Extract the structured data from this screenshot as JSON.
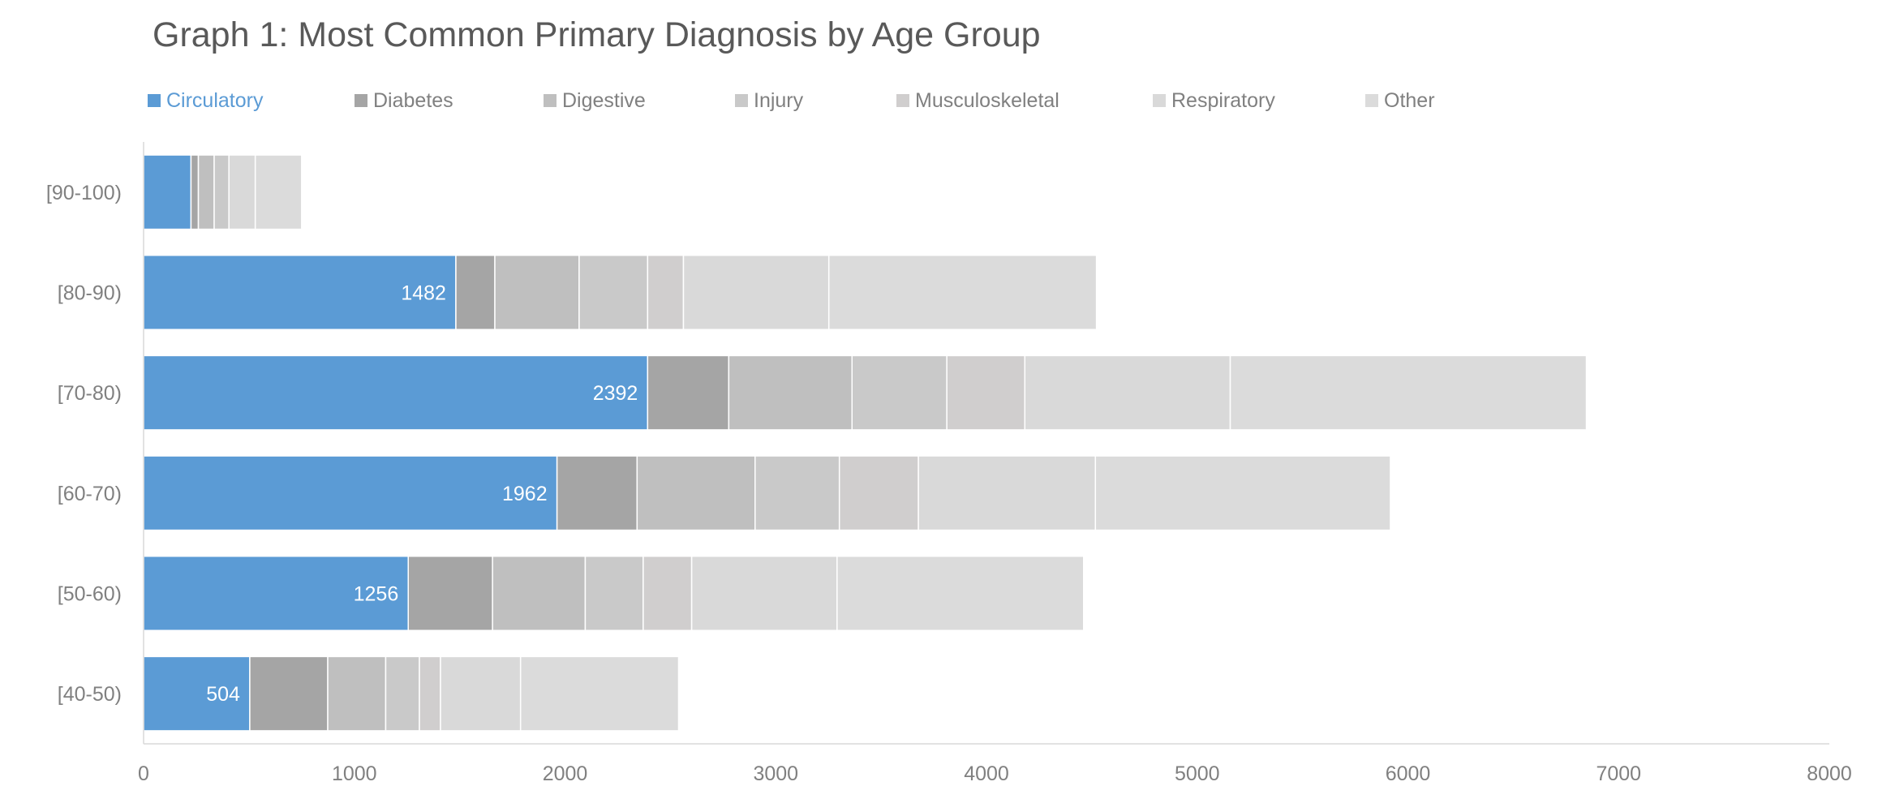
{
  "chart_data": {
    "type": "bar",
    "orientation": "horizontal",
    "stacked": true,
    "title": "Graph 1: Most Common Primary Diagnosis by Age Group",
    "legend_position": "top",
    "categories": [
      "[40-50)",
      "[50-60)",
      "[60-70)",
      "[70-80)",
      "[80-90)",
      "[90-100)"
    ],
    "series": [
      {
        "name": "Circulatory",
        "color": "#5b9bd5",
        "values": [
          504,
          1256,
          1962,
          2392,
          1482,
          225
        ]
      },
      {
        "name": "Diabetes",
        "color": "#a5a5a5",
        "values": [
          370,
          400,
          380,
          385,
          185,
          35
        ]
      },
      {
        "name": "Digestive",
        "color": "#bfbfbf",
        "values": [
          275,
          440,
          560,
          585,
          400,
          75
        ]
      },
      {
        "name": "Injury",
        "color": "#c9c9c9",
        "values": [
          160,
          275,
          400,
          450,
          325,
          70
        ]
      },
      {
        "name": "Musculoskeletal",
        "color": "#d0cece",
        "values": [
          100,
          230,
          375,
          370,
          170,
          0
        ]
      },
      {
        "name": "Respiratory",
        "color": "#d9d9d9",
        "values": [
          380,
          690,
          840,
          975,
          690,
          125
        ]
      },
      {
        "name": "Other",
        "color": "#dbdbdb",
        "values": [
          750,
          1170,
          1400,
          1690,
          1270,
          220
        ]
      }
    ],
    "data_labels": {
      "series": "Circulatory",
      "values": [
        504,
        1256,
        1962,
        2392,
        1482,
        null
      ]
    },
    "x_ticks": [
      "0",
      "1000",
      "2000",
      "3000",
      "4000",
      "5000",
      "6000",
      "7000",
      "8000"
    ],
    "xlim": [
      0,
      8000
    ],
    "xlabel": "",
    "ylabel": "",
    "grid": false
  }
}
